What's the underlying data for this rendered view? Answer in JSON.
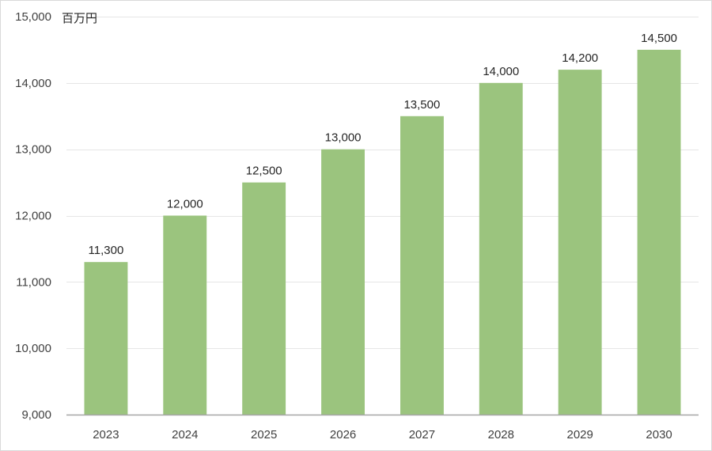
{
  "chart_data": {
    "type": "bar",
    "title": "",
    "xlabel": "",
    "ylabel": "",
    "unit_label": "百万円",
    "categories": [
      "2023",
      "2024",
      "2025",
      "2026",
      "2027",
      "2028",
      "2029",
      "2030"
    ],
    "values": [
      11300,
      12000,
      12500,
      13000,
      13500,
      14000,
      14200,
      14500
    ],
    "data_labels": [
      "11,300",
      "12,000",
      "12,500",
      "13,000",
      "13,500",
      "14,000",
      "14,200",
      "14,500"
    ],
    "ylim": [
      9000,
      15000
    ],
    "yticks": [
      9000,
      10000,
      11000,
      12000,
      13000,
      14000,
      15000
    ],
    "ytick_labels": [
      "9,000",
      "10,000",
      "11,000",
      "12,000",
      "13,000",
      "14,000",
      "15,000"
    ],
    "grid": true,
    "legend": "none",
    "colors": {
      "bar": "#9bc47e",
      "gridline": "#e6e6e6",
      "axis": "#a6a6a6",
      "text": "#404040"
    }
  }
}
